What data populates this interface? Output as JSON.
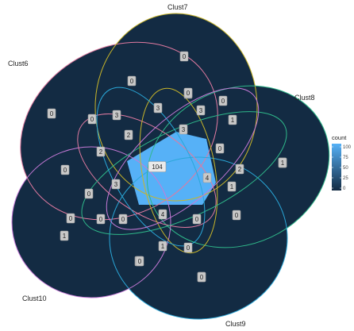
{
  "sets": [
    {
      "name": "Clust6",
      "color": "#e07aa0"
    },
    {
      "name": "Clust7",
      "color": "#c8b52a"
    },
    {
      "name": "Clust8",
      "color": "#2fb88a"
    },
    {
      "name": "Clust9",
      "color": "#2aa7d8"
    },
    {
      "name": "Clust10",
      "color": "#c77ad8"
    }
  ],
  "counts": [
    "0",
    "0",
    "0",
    "0",
    "0",
    "0",
    "0",
    "3",
    "0",
    "3",
    "1",
    "3",
    "3",
    "0",
    "1",
    "0",
    "2",
    "104",
    "2",
    "1",
    "2",
    "0",
    "0",
    "3",
    "4",
    "1",
    "0",
    "0",
    "0",
    "4",
    "0",
    "0",
    "1",
    "0",
    "1",
    "0",
    "0",
    "0"
  ],
  "legend": {
    "title": "count",
    "ticks": [
      "100",
      "75",
      "50",
      "25",
      "0"
    ],
    "low_color": "#132b43",
    "high_color": "#56b1f7"
  }
}
